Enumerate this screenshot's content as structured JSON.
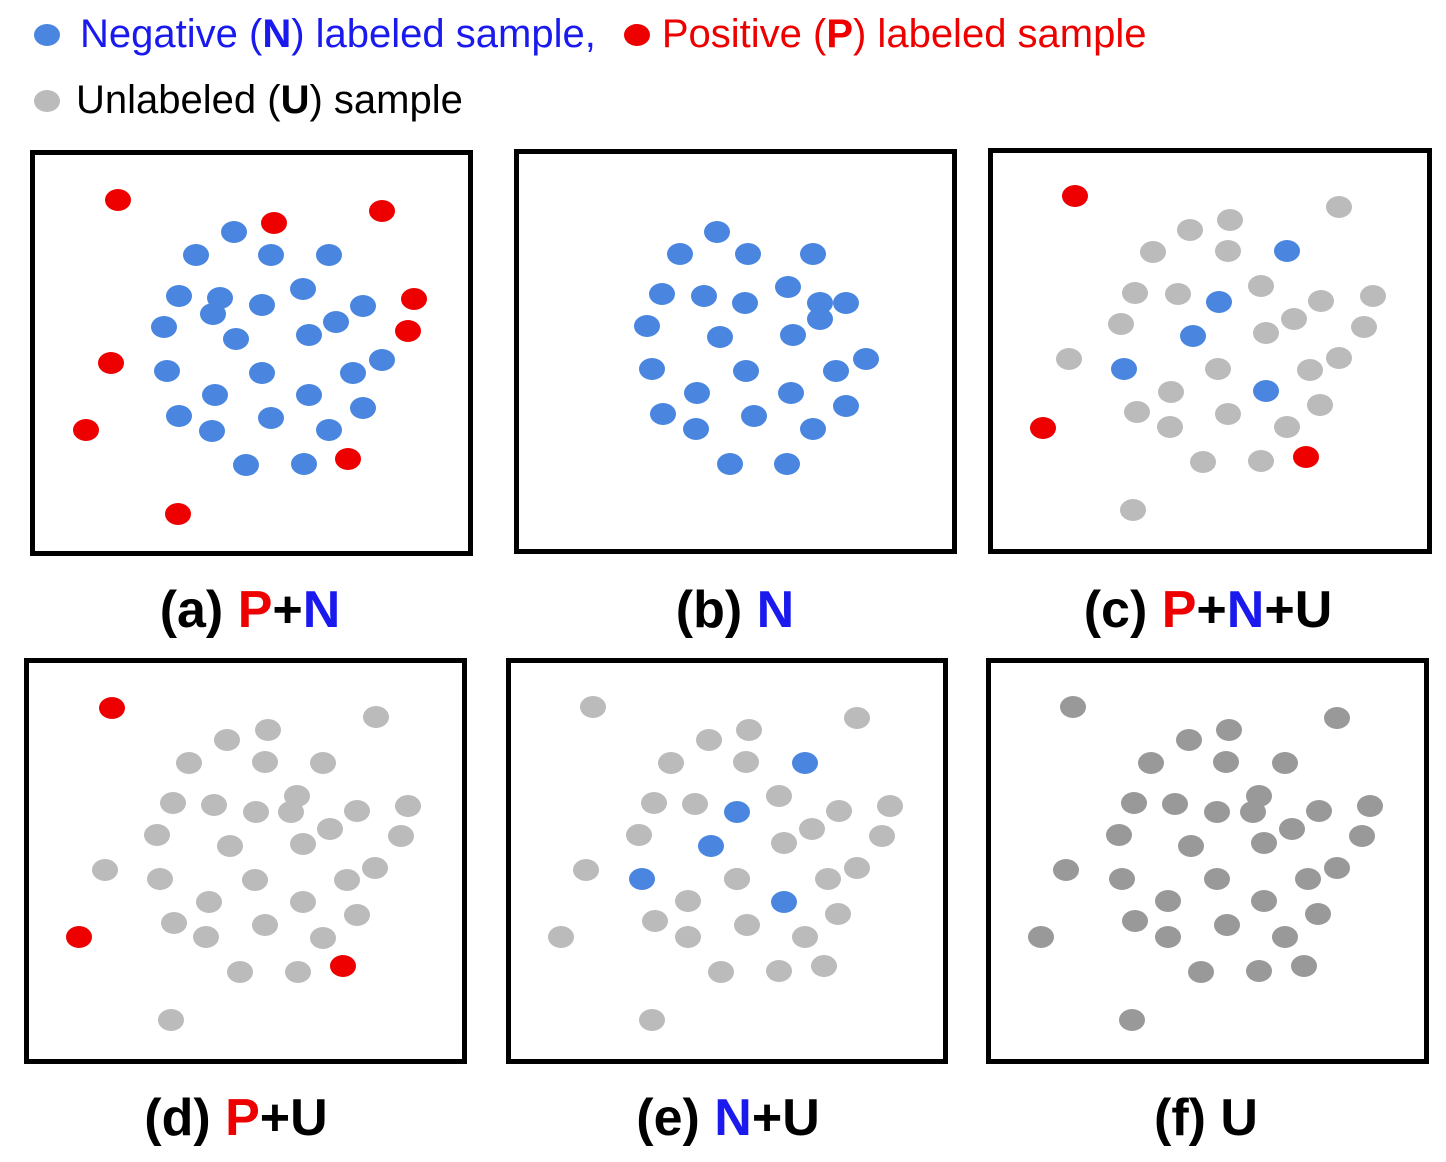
{
  "colors": {
    "negative": "#4a86e0",
    "positive": "#ee0000",
    "unlabeled": "#bbbbbb",
    "unlabeled_dark": "#999999",
    "text_negative": "#1a1aee",
    "text_positive": "#ee0000",
    "text_default": "#000000"
  },
  "legend": {
    "negative": {
      "prefix": "Negative (",
      "key": "N",
      "suffix": ") labeled sample,"
    },
    "positive": {
      "prefix": "Positive (",
      "key": "P",
      "suffix": ") labeled sample"
    },
    "unlabeled": {
      "prefix": "Unlabeled (",
      "key": "U",
      "suffix": ") sample"
    }
  },
  "panels": [
    {
      "id": "a",
      "tag": "(a)",
      "parts": [
        {
          "t": "P",
          "c": "positive"
        },
        {
          "t": "+",
          "c": "default"
        },
        {
          "t": "N",
          "c": "negative"
        }
      ],
      "points": [
        "R",
        "R",
        "R",
        "R",
        "R",
        "R",
        "R",
        "R",
        "R",
        "N",
        "N",
        "N",
        "N",
        "N",
        "N",
        "N",
        "N",
        "N",
        "N",
        "N",
        "N",
        "N",
        "N",
        "N",
        "N",
        "N",
        "N",
        "N",
        "N",
        "N",
        "N",
        "N",
        "N",
        "N",
        "N",
        "N"
      ]
    },
    {
      "id": "b",
      "tag": "(b)",
      "parts": [
        {
          "t": "N",
          "c": "negative"
        }
      ],
      "points": [
        "N",
        "N",
        "N",
        "N",
        "N",
        "N",
        "N",
        "N",
        "N",
        "N",
        "N",
        "N",
        "N",
        "N",
        "N",
        "N",
        "N",
        "N",
        "N",
        "N",
        "N",
        "N",
        "N",
        "N",
        "N",
        "N",
        "N"
      ]
    },
    {
      "id": "c",
      "tag": "(c)",
      "parts": [
        {
          "t": "P",
          "c": "positive"
        },
        {
          "t": "+",
          "c": "default"
        },
        {
          "t": "N",
          "c": "negative"
        },
        {
          "t": "+U",
          "c": "default"
        }
      ],
      "points": [
        "R",
        "R",
        "R",
        "G",
        "G",
        "G",
        "G",
        "G",
        "G",
        "G",
        "G",
        "G",
        "G",
        "G",
        "G",
        "G",
        "G",
        "G",
        "G",
        "G",
        "G",
        "G",
        "G",
        "G",
        "G",
        "G",
        "G",
        "G",
        "G",
        "G",
        "N",
        "N",
        "N",
        "N",
        "N"
      ]
    },
    {
      "id": "d",
      "tag": "(d)",
      "parts": [
        {
          "t": "P",
          "c": "positive"
        },
        {
          "t": "+U",
          "c": "default"
        }
      ],
      "points": [
        "R",
        "R",
        "R",
        "G",
        "G",
        "G",
        "G",
        "G",
        "G",
        "G",
        "G",
        "G",
        "G",
        "G",
        "G",
        "G",
        "G",
        "G",
        "G",
        "G",
        "G",
        "G",
        "G",
        "G",
        "G",
        "G",
        "G",
        "G",
        "G",
        "G",
        "G",
        "G",
        "G",
        "G",
        "G",
        "G"
      ]
    },
    {
      "id": "e",
      "tag": "(e)",
      "parts": [
        {
          "t": "N",
          "c": "negative"
        },
        {
          "t": "+U",
          "c": "default"
        }
      ],
      "points": [
        "G",
        "G",
        "G",
        "G",
        "G",
        "G",
        "G",
        "G",
        "G",
        "G",
        "G",
        "G",
        "G",
        "G",
        "G",
        "G",
        "G",
        "G",
        "G",
        "G",
        "G",
        "G",
        "G",
        "G",
        "G",
        "G",
        "G",
        "G",
        "G",
        "G",
        "G",
        "N",
        "N",
        "N",
        "N",
        "N"
      ]
    },
    {
      "id": "f",
      "tag": "(f)",
      "parts": [
        {
          "t": "U",
          "c": "default"
        }
      ],
      "points": [
        "D",
        "D",
        "D",
        "D",
        "D",
        "D",
        "D",
        "D",
        "D",
        "D",
        "D",
        "D",
        "D",
        "D",
        "D",
        "D",
        "D",
        "D",
        "D",
        "D",
        "D",
        "D",
        "D",
        "D",
        "D",
        "D",
        "D",
        "D",
        "D",
        "D",
        "D",
        "D",
        "D",
        "D",
        "D",
        "D"
      ]
    }
  ]
}
